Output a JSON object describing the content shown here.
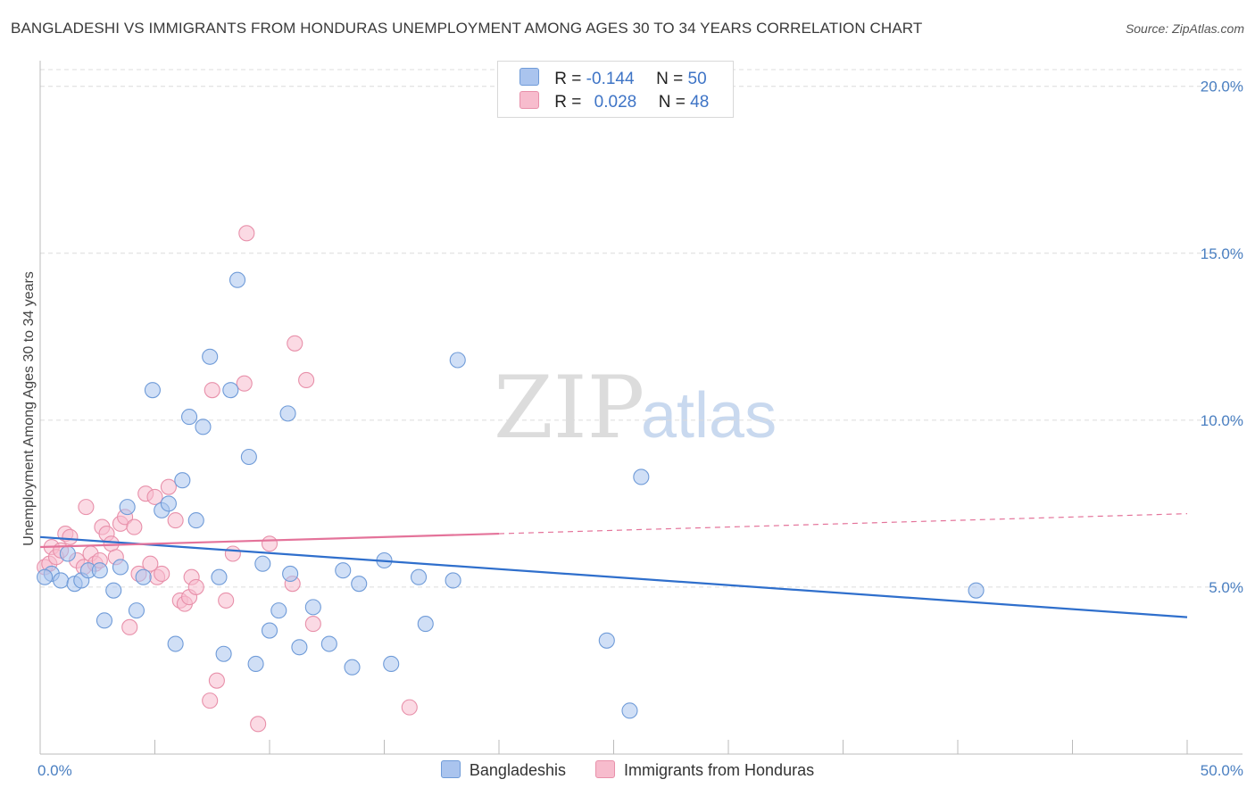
{
  "title": "BANGLADESHI VS IMMIGRANTS FROM HONDURAS UNEMPLOYMENT AMONG AGES 30 TO 34 YEARS CORRELATION CHART",
  "source": "Source: ZipAtlas.com",
  "watermark": {
    "zip": "ZIP",
    "atlas": "atlas"
  },
  "legend": {
    "rows": [
      {
        "r_label": "R =",
        "r_value": "-0.144",
        "n_label": "N =",
        "n_value": "50",
        "color": "#aac4ee"
      },
      {
        "r_label": "R =",
        "r_value": "0.028",
        "n_label": "N =",
        "n_value": "48",
        "color": "#f7bccd"
      }
    ]
  },
  "bottom_legend": {
    "series1": "Bangladeshis",
    "series2": "Immigrants from Honduras"
  },
  "colors": {
    "blue_fill": "#aac4ee",
    "blue_stroke": "#6f9bd8",
    "blue_line": "#2f6fcc",
    "pink_fill": "#f7bccd",
    "pink_stroke": "#e890aa",
    "pink_line": "#e4739a",
    "grid": "#dcdcdc",
    "axis_text": "#4a7fc1"
  },
  "chart_data": {
    "type": "scatter",
    "title": "BANGLADESHI VS IMMIGRANTS FROM HONDURAS UNEMPLOYMENT AMONG AGES 30 TO 34 YEARS CORRELATION CHART",
    "xlabel": "",
    "ylabel": "Unemployment Among Ages 30 to 34 years",
    "xlim": [
      0,
      50
    ],
    "ylim": [
      0,
      20.5
    ],
    "x_tick_labels": [
      "0.0%",
      "50.0%"
    ],
    "y_ticks": [
      5,
      10,
      15,
      20
    ],
    "y_tick_labels": [
      "5.0%",
      "10.0%",
      "15.0%",
      "20.0%"
    ],
    "grid": "horizontal dashed",
    "legend_position": "top-center",
    "series": [
      {
        "name": "Bangladeshis",
        "r": -0.144,
        "n": 50,
        "trend": {
          "x": [
            0,
            50
          ],
          "y": [
            6.5,
            4.1
          ],
          "solid_until": 50
        },
        "points": [
          [
            0.5,
            5.4
          ],
          [
            0.9,
            5.2
          ],
          [
            1.2,
            6.0
          ],
          [
            1.5,
            5.1
          ],
          [
            1.8,
            5.2
          ],
          [
            2.1,
            5.5
          ],
          [
            2.6,
            5.5
          ],
          [
            2.8,
            4.0
          ],
          [
            3.2,
            4.9
          ],
          [
            3.5,
            5.6
          ],
          [
            3.8,
            7.4
          ],
          [
            4.2,
            4.3
          ],
          [
            4.5,
            5.3
          ],
          [
            4.9,
            10.9
          ],
          [
            5.3,
            7.3
          ],
          [
            5.6,
            7.5
          ],
          [
            5.9,
            3.3
          ],
          [
            6.2,
            8.2
          ],
          [
            6.5,
            10.1
          ],
          [
            6.8,
            7.0
          ],
          [
            7.1,
            9.8
          ],
          [
            7.4,
            11.9
          ],
          [
            7.8,
            5.3
          ],
          [
            8.0,
            3.0
          ],
          [
            8.3,
            10.9
          ],
          [
            8.6,
            14.2
          ],
          [
            9.1,
            8.9
          ],
          [
            9.4,
            2.7
          ],
          [
            9.7,
            5.7
          ],
          [
            10.0,
            3.7
          ],
          [
            10.4,
            4.3
          ],
          [
            10.8,
            10.2
          ],
          [
            10.9,
            5.4
          ],
          [
            11.3,
            3.2
          ],
          [
            11.9,
            4.4
          ],
          [
            12.6,
            3.3
          ],
          [
            13.2,
            5.5
          ],
          [
            13.6,
            2.6
          ],
          [
            13.9,
            5.1
          ],
          [
            15.0,
            5.8
          ],
          [
            15.3,
            2.7
          ],
          [
            16.5,
            5.3
          ],
          [
            16.8,
            3.9
          ],
          [
            18.0,
            5.2
          ],
          [
            18.2,
            11.8
          ],
          [
            24.7,
            3.4
          ],
          [
            25.7,
            1.3
          ],
          [
            26.2,
            8.3
          ],
          [
            40.8,
            4.9
          ],
          [
            0.2,
            5.3
          ]
        ]
      },
      {
        "name": "Immigrants from Honduras",
        "r": 0.028,
        "n": 48,
        "trend": {
          "x": [
            0,
            50
          ],
          "y": [
            6.2,
            7.2
          ],
          "solid_until": 20
        },
        "points": [
          [
            0.2,
            5.6
          ],
          [
            0.4,
            5.7
          ],
          [
            0.5,
            6.2
          ],
          [
            0.7,
            5.9
          ],
          [
            0.9,
            6.1
          ],
          [
            1.1,
            6.6
          ],
          [
            1.3,
            6.5
          ],
          [
            1.6,
            5.8
          ],
          [
            1.9,
            5.6
          ],
          [
            2.0,
            7.4
          ],
          [
            2.2,
            6.0
          ],
          [
            2.4,
            5.7
          ],
          [
            2.6,
            5.8
          ],
          [
            2.7,
            6.8
          ],
          [
            2.9,
            6.6
          ],
          [
            3.1,
            6.3
          ],
          [
            3.3,
            5.9
          ],
          [
            3.5,
            6.9
          ],
          [
            3.7,
            7.1
          ],
          [
            3.9,
            3.8
          ],
          [
            4.1,
            6.8
          ],
          [
            4.3,
            5.4
          ],
          [
            4.6,
            7.8
          ],
          [
            4.8,
            5.7
          ],
          [
            5.0,
            7.7
          ],
          [
            5.1,
            5.3
          ],
          [
            5.3,
            5.4
          ],
          [
            5.6,
            8.0
          ],
          [
            5.9,
            7.0
          ],
          [
            6.1,
            4.6
          ],
          [
            6.3,
            4.5
          ],
          [
            6.5,
            4.7
          ],
          [
            6.6,
            5.3
          ],
          [
            6.8,
            5.0
          ],
          [
            7.4,
            1.6
          ],
          [
            7.5,
            10.9
          ],
          [
            7.7,
            2.2
          ],
          [
            8.1,
            4.6
          ],
          [
            8.4,
            6.0
          ],
          [
            8.9,
            11.1
          ],
          [
            9.0,
            15.6
          ],
          [
            9.5,
            0.9
          ],
          [
            10.0,
            6.3
          ],
          [
            11.0,
            5.1
          ],
          [
            11.1,
            12.3
          ],
          [
            11.6,
            11.2
          ],
          [
            11.9,
            3.9
          ],
          [
            16.1,
            1.4
          ]
        ]
      }
    ]
  }
}
